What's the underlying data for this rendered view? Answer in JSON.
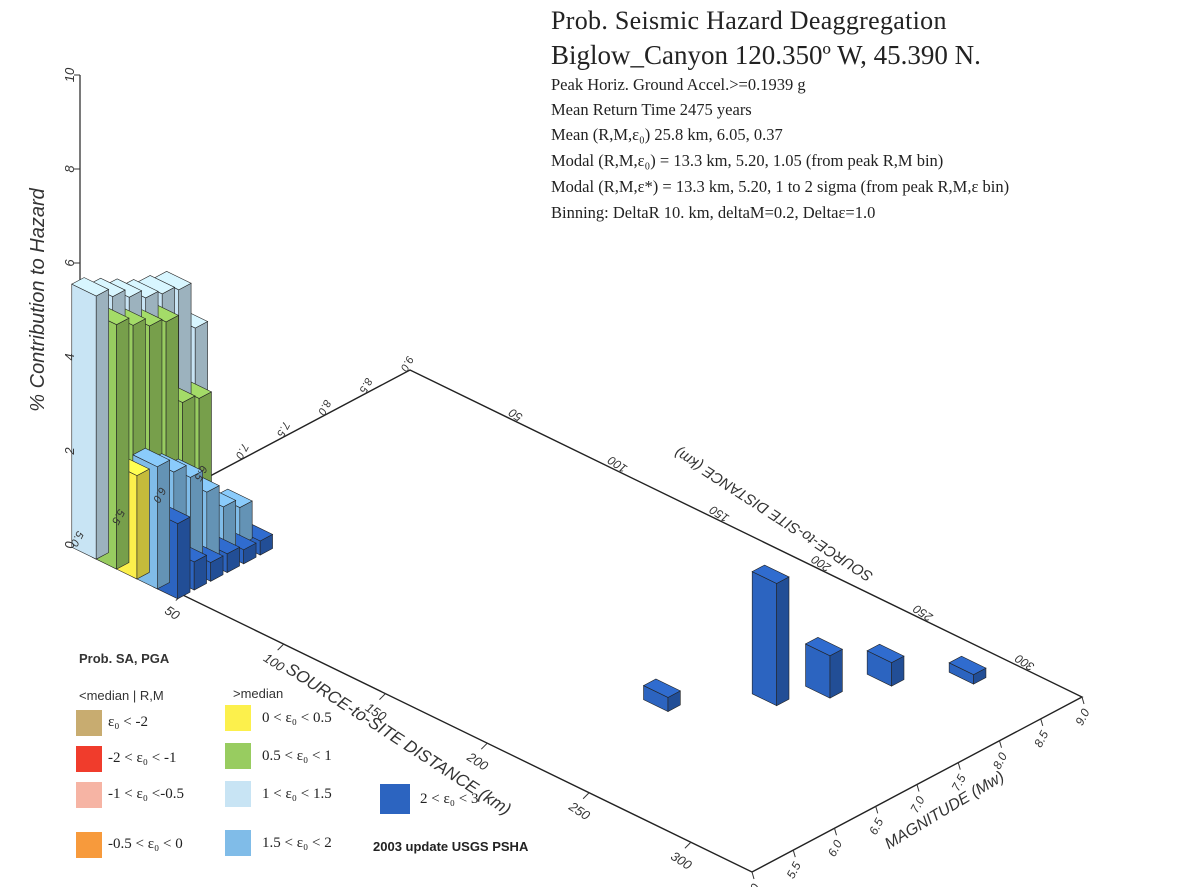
{
  "header": {
    "title": "Prob. Seismic Hazard Deaggregation",
    "site_line": "Biglow_Canyon  120.350º W, 45.390 N.",
    "lines": [
      "Peak Horiz. Ground Accel.>=0.1939  g",
      "Mean Return Time 2475 years",
      "Mean (R,M,ε₀)  25.8 km, 6.05,  0.37",
      "Modal (R,M,ε₀) =  13.3 km, 5.20,  1.05 (from peak R,M bin)",
      "Modal (R,M,ε*) = 13.3 km, 5.20, 1 to 2 sigma  (from peak R,M,ε bin)",
      "Binning: DeltaR 10. km, deltaM=0.2, Deltaε=1.0"
    ]
  },
  "legend": {
    "title": "Prob. SA, PGA",
    "below_header": "<median | R,M",
    "above_header": ">median",
    "items": [
      {
        "label": "ε₀ < -2",
        "color": "#c8ac70"
      },
      {
        "label": "-2 < ε₀ < -1",
        "color": "#f03c2c"
      },
      {
        "label": "-1 < ε₀ <-0.5",
        "color": "#f6b4a4"
      },
      {
        "label": "-0.5 < ε₀ < 0",
        "color": "#f79a3c"
      },
      {
        "label": "0 < ε₀ < 0.5",
        "color": "#fcf04c"
      },
      {
        "label": "0.5 < ε₀ < 1",
        "color": "#98cc60"
      },
      {
        "label": "1 < ε₀ < 1.5",
        "color": "#c8e4f4"
      },
      {
        "label": "1.5 < ε₀ < 2",
        "color": "#80bce8"
      },
      {
        "label": "2 < ε₀ < 3",
        "color": "#2c64c0"
      }
    ],
    "credit": "2003 update USGS PSHA"
  },
  "chart_data": {
    "type": "bar",
    "title": "Prob. Seismic Hazard Deaggregation",
    "zlabel": "% Contribution to Hazard",
    "xlabel": "SOURCE-to-SITE DISTANCE (km)",
    "ylabel": "MAGNITUDE (Mw)",
    "zlim": [
      0,
      10
    ],
    "z_ticks": [
      "0",
      "2",
      "4",
      "6",
      "8",
      "10"
    ],
    "distance_ticks": [
      "50",
      "100",
      "150",
      "200",
      "250",
      "300"
    ],
    "magnitude_ticks": [
      "5.0",
      "5.5",
      "6.0",
      "6.5",
      "7.0",
      "7.5",
      "8.0",
      "8.5",
      "9.0"
    ],
    "series": [
      {
        "name": "1 < ε₀ < 1.5",
        "color": "#c8e4f4",
        "points": [
          {
            "r": 5,
            "m": 5.0,
            "z": 5.6
          },
          {
            "r": 5,
            "m": 5.2,
            "z": 5.4
          },
          {
            "r": 5,
            "m": 5.4,
            "z": 5.2
          },
          {
            "r": 5,
            "m": 5.6,
            "z": 5.0
          },
          {
            "r": 5,
            "m": 5.8,
            "z": 4.9
          },
          {
            "r": 5,
            "m": 6.0,
            "z": 4.8
          },
          {
            "r": 5,
            "m": 6.2,
            "z": 3.8
          }
        ]
      },
      {
        "name": "0.5 < ε₀ < 1",
        "color": "#98cc60",
        "points": [
          {
            "r": 15,
            "m": 5.0,
            "z": 5.2
          },
          {
            "r": 15,
            "m": 5.2,
            "z": 5.0
          },
          {
            "r": 15,
            "m": 5.4,
            "z": 4.8
          },
          {
            "r": 15,
            "m": 5.6,
            "z": 4.7
          },
          {
            "r": 15,
            "m": 5.8,
            "z": 2.8
          },
          {
            "r": 15,
            "m": 6.0,
            "z": 2.7
          }
        ]
      },
      {
        "name": "0 < ε₀ < 0.5",
        "color": "#fcf04c",
        "points": [
          {
            "r": 25,
            "m": 5.0,
            "z": 2.2
          },
          {
            "r": 25,
            "m": 5.2,
            "z": 2.0
          },
          {
            "r": 25,
            "m": 5.4,
            "z": 1.6
          },
          {
            "r": 25,
            "m": 5.6,
            "z": 1.4
          }
        ]
      },
      {
        "name": "1.5 < ε₀ < 2",
        "color": "#80bce8",
        "points": [
          {
            "r": 35,
            "m": 5.0,
            "z": 2.6
          },
          {
            "r": 35,
            "m": 5.2,
            "z": 2.3
          },
          {
            "r": 35,
            "m": 5.4,
            "z": 2.0
          },
          {
            "r": 35,
            "m": 5.6,
            "z": 1.5
          },
          {
            "r": 35,
            "m": 5.8,
            "z": 1.0
          },
          {
            "r": 35,
            "m": 6.0,
            "z": 0.8
          }
        ]
      },
      {
        "name": "2 < ε₀ < 3",
        "color": "#2c64c0",
        "points": [
          {
            "r": 45,
            "m": 5.0,
            "z": 1.6
          },
          {
            "r": 45,
            "m": 5.2,
            "z": 0.6
          },
          {
            "r": 45,
            "m": 5.4,
            "z": 0.4
          },
          {
            "r": 45,
            "m": 5.6,
            "z": 0.4
          },
          {
            "r": 45,
            "m": 5.8,
            "z": 0.3
          },
          {
            "r": 45,
            "m": 6.0,
            "z": 0.3
          },
          {
            "r": 225,
            "m": 6.5,
            "z": 0.3
          },
          {
            "r": 250,
            "m": 7.2,
            "z": 2.6
          },
          {
            "r": 260,
            "m": 7.6,
            "z": 0.9
          },
          {
            "r": 270,
            "m": 8.1,
            "z": 0.5
          },
          {
            "r": 290,
            "m": 8.6,
            "z": 0.2
          }
        ]
      }
    ]
  }
}
